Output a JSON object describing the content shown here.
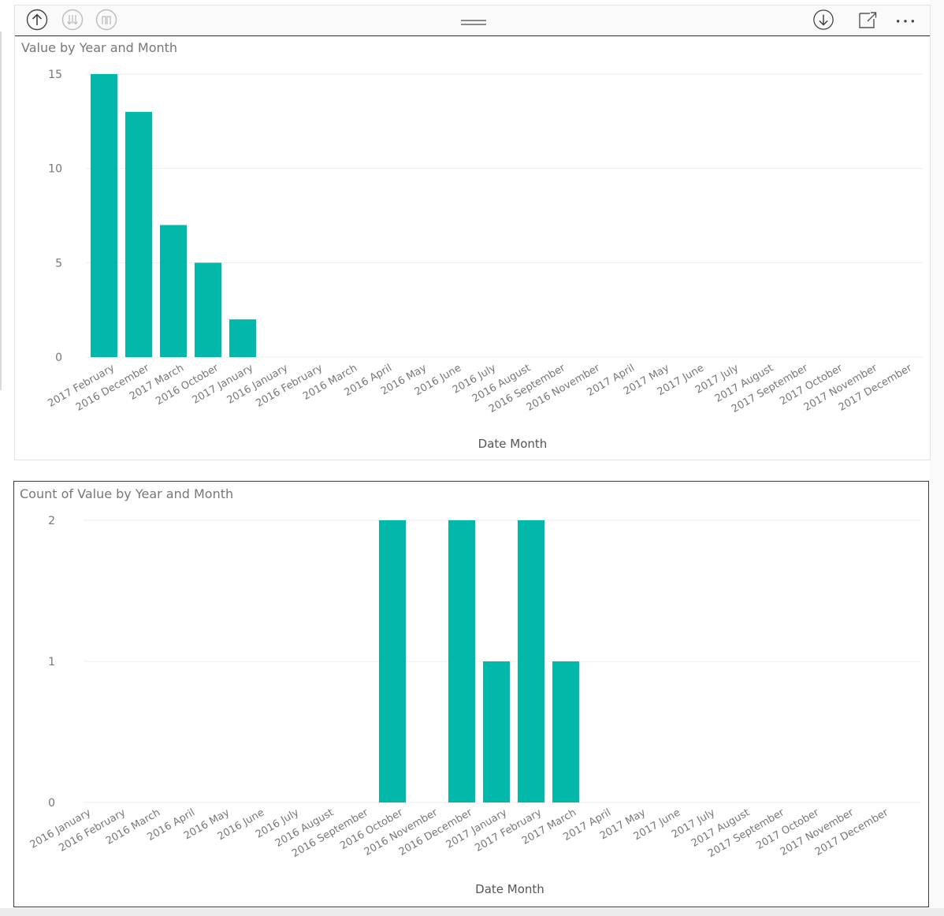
{
  "colors": {
    "bar": "#01B8AA",
    "gridline": "#ececec",
    "text": "#777777"
  },
  "header": {
    "icons": [
      "drill-up-icon",
      "drill-down-all-icon",
      "expand-hierarchy-icon",
      "grip-icon",
      "drill-mode-icon",
      "focus-mode-icon",
      "more-options-icon"
    ]
  },
  "chart_data": [
    {
      "type": "bar",
      "title": "Value by Year and Month",
      "xlabel": "Date Month",
      "ylabel": "",
      "ylim": [
        0,
        15
      ],
      "yticks": [
        0,
        5,
        10,
        15
      ],
      "grid": true,
      "categories": [
        "2017 February",
        "2016 December",
        "2017 March",
        "2016 October",
        "2017 January",
        "2016 January",
        "2016 February",
        "2016 March",
        "2016 April",
        "2016 May",
        "2016 June",
        "2016 July",
        "2016 August",
        "2016 September",
        "2016 November",
        "2017 April",
        "2017 May",
        "2017 June",
        "2017 July",
        "2017 August",
        "2017 September",
        "2017 October",
        "2017 November",
        "2017 December"
      ],
      "values": [
        15,
        13,
        7,
        5,
        2,
        0,
        0,
        0,
        0,
        0,
        0,
        0,
        0,
        0,
        0,
        0,
        0,
        0,
        0,
        0,
        0,
        0,
        0,
        0
      ]
    },
    {
      "type": "bar",
      "title": "Count of Value by Year and Month",
      "xlabel": "Date Month",
      "ylabel": "",
      "ylim": [
        0,
        2
      ],
      "yticks": [
        0,
        1,
        2
      ],
      "grid": true,
      "categories": [
        "2016 January",
        "2016 February",
        "2016 March",
        "2016 April",
        "2016 May",
        "2016 June",
        "2016 July",
        "2016 August",
        "2016 September",
        "2016 October",
        "2016 November",
        "2016 December",
        "2017 January",
        "2017 February",
        "2017 March",
        "2017 April",
        "2017 May",
        "2017 June",
        "2017 July",
        "2017 August",
        "2017 September",
        "2017 October",
        "2017 November",
        "2017 December"
      ],
      "values": [
        0,
        0,
        0,
        0,
        0,
        0,
        0,
        0,
        0,
        2,
        0,
        2,
        1,
        2,
        1,
        0,
        0,
        0,
        0,
        0,
        0,
        0,
        0,
        0
      ]
    }
  ]
}
